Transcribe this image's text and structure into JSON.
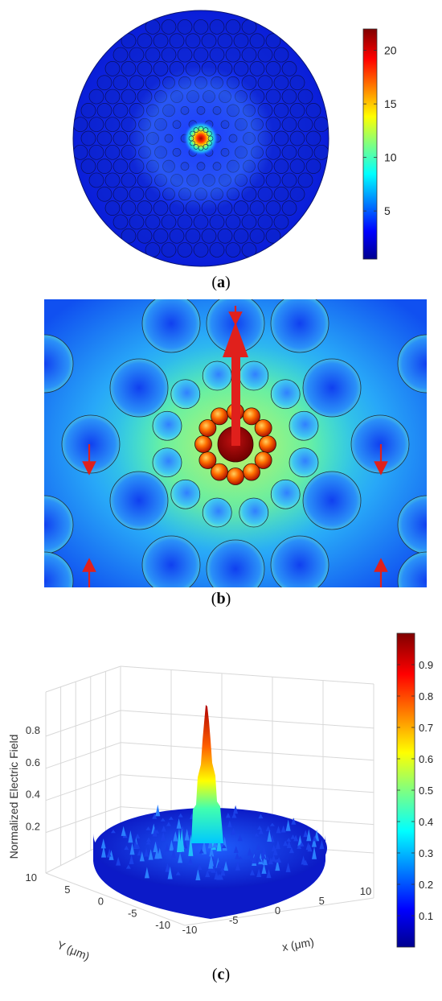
{
  "panel_a": {
    "caption_open": "(",
    "caption_letter": "a",
    "caption_close": ")",
    "colorbar_ticks": [
      "20",
      "15",
      "10",
      "5"
    ],
    "colorbar_range": [
      0.5,
      22
    ]
  },
  "panel_b": {
    "caption_open": "(",
    "caption_letter": "b",
    "caption_close": ")"
  },
  "panel_c": {
    "caption_open": "(",
    "caption_letter": "c",
    "caption_close": ")",
    "z_label": "Normalized Electric Field",
    "x_label": "x (μm)",
    "y_label": "Y (μm)",
    "z_ticks": [
      "0.8",
      "0.6",
      "0.4",
      "0.2"
    ],
    "x_ticks": [
      "-10",
      "-5",
      "0",
      "5",
      "10"
    ],
    "y_ticks": [
      "10",
      "5",
      "0",
      "-5",
      "-10"
    ],
    "colorbar_ticks": [
      "0.9",
      "0.8",
      "0.7",
      "0.6",
      "0.5",
      "0.4",
      "0.3",
      "0.2",
      "0.1"
    ],
    "colorbar_range": [
      0,
      1
    ]
  },
  "colors": {
    "jet_low": "#00008f",
    "jet_high": "#800000",
    "arrow": "#e0201c"
  }
}
